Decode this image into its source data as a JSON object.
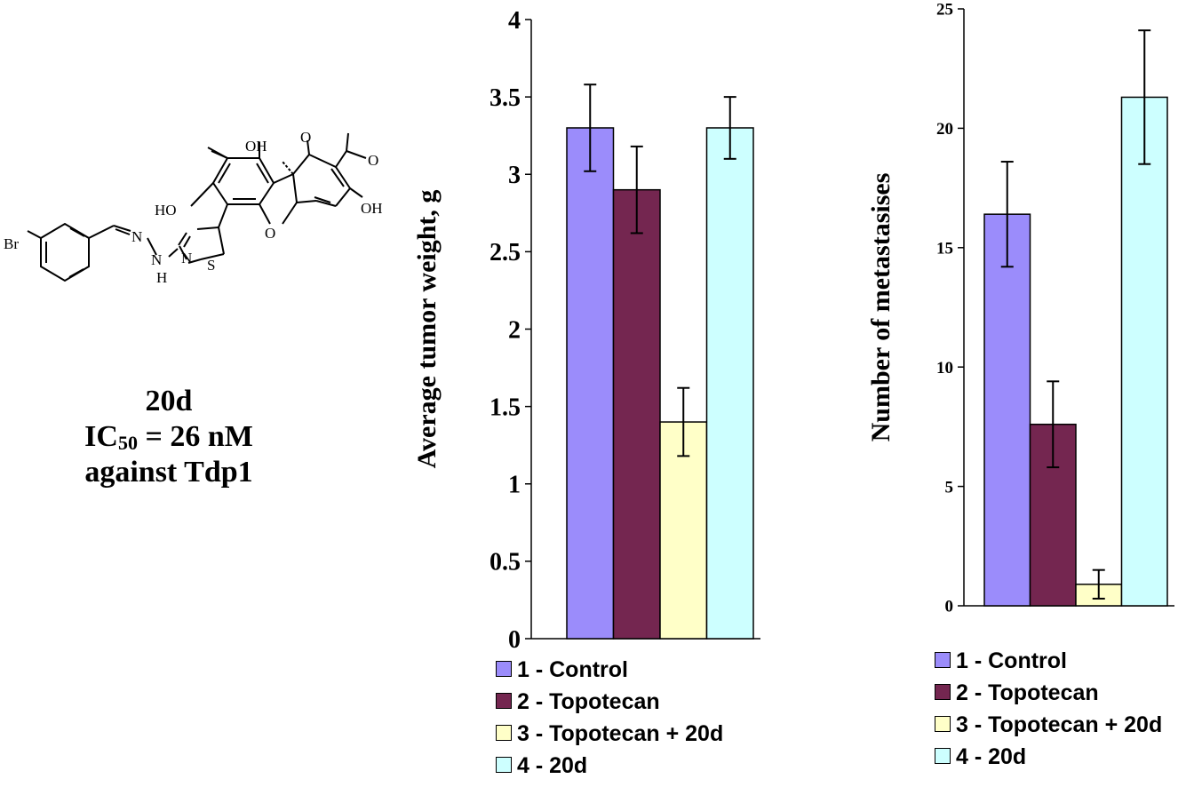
{
  "compound": {
    "name": "20d",
    "ic50_prefix": "IC",
    "ic50_sub": "50",
    "ic50_value": " = 26 nM",
    "target": "against Tdp1",
    "atom_labels": {
      "br": "Br",
      "n1": "N",
      "n2": "N",
      "h": "H",
      "n3": "N",
      "s": "S",
      "o_ring": "O",
      "oh1": "OH",
      "oh2": "HO",
      "oh3": "OH",
      "o_ketone": "O",
      "o_acetyl": "O"
    }
  },
  "legend_items": [
    "1 - Control",
    "2 - Topotecan",
    "3 - Topotecan + 20d",
    "4 - 20d"
  ],
  "colors": [
    "#9b8cfb",
    "#742650",
    "#ffffc8",
    "#cdffff"
  ],
  "chart_data": [
    {
      "type": "bar",
      "ylabel": "Average tumor weight, g",
      "ylim": [
        0,
        4
      ],
      "yticks": [
        "0",
        "0.5",
        "1",
        "1.5",
        "2",
        "2.5",
        "3",
        "3.5",
        "4"
      ],
      "series": [
        {
          "name": "1 - Control",
          "value": 3.3,
          "error": 0.28
        },
        {
          "name": "2 - Topotecan",
          "value": 2.9,
          "error": 0.28
        },
        {
          "name": "3 - Topotecan + 20d",
          "value": 1.4,
          "error": 0.22
        },
        {
          "name": "4 - 20d",
          "value": 3.3,
          "error": 0.2
        }
      ]
    },
    {
      "type": "bar",
      "ylabel": "Number of metastasises",
      "ylim": [
        0,
        25
      ],
      "yticks": [
        "0",
        "5",
        "10",
        "15",
        "20",
        "25"
      ],
      "series": [
        {
          "name": "1 - Control",
          "value": 16.4,
          "error": 2.2
        },
        {
          "name": "2 - Topotecan",
          "value": 7.6,
          "error": 1.8
        },
        {
          "name": "3 - Topotecan + 20d",
          "value": 0.9,
          "error": 0.6
        },
        {
          "name": "4 - 20d",
          "value": 21.3,
          "error": 2.8
        }
      ]
    }
  ]
}
